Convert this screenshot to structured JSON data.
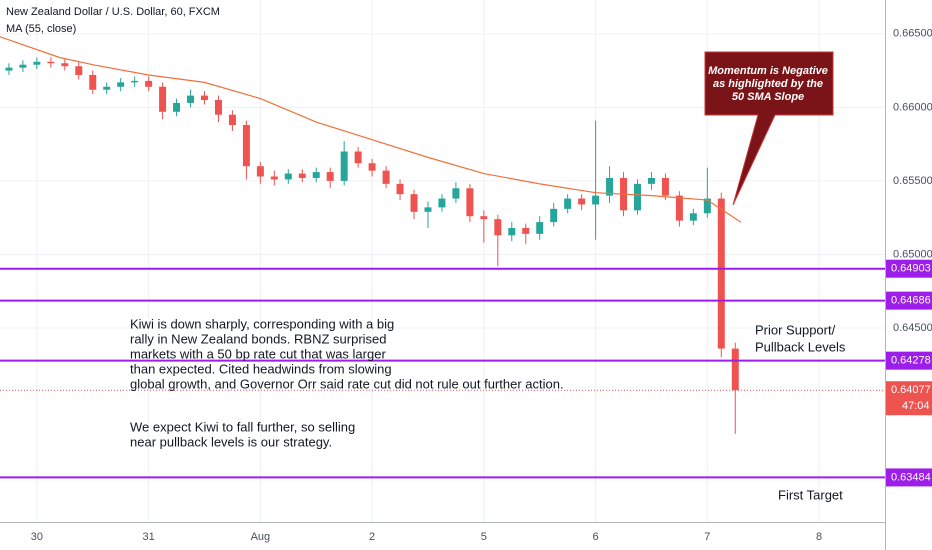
{
  "chart_data": {
    "type": "candlestick",
    "title": "New Zealand Dollar / U.S. Dollar, 60, FXCM",
    "indicator_label": "MA (55, close)",
    "x": [
      -0.25,
      -0.125,
      0,
      0.125,
      0.25,
      0.375,
      0.5,
      0.625,
      0.75,
      0.875,
      1,
      1.125,
      1.25,
      1.375,
      1.5,
      1.625,
      1.75,
      1.875,
      2,
      2.125,
      2.25,
      2.375,
      2.5,
      2.625,
      2.75,
      2.875,
      3,
      3.125,
      3.25,
      3.375,
      3.5,
      3.625,
      3.75,
      3.875,
      4,
      4.125,
      4.25,
      4.375,
      4.5,
      4.625,
      4.75,
      4.875,
      5,
      5.125,
      5.25,
      5.375,
      5.5,
      5.625,
      5.75,
      5.875,
      6,
      6.125,
      6.25
    ],
    "open": [
      0.6625,
      0.6627,
      0.6629,
      0.6631,
      0.663,
      0.6628,
      0.6622,
      0.6612,
      0.6614,
      0.6617,
      0.6618,
      0.6614,
      0.6597,
      0.6603,
      0.6608,
      0.6605,
      0.6595,
      0.6588,
      0.656,
      0.6553,
      0.6551,
      0.6555,
      0.6552,
      0.6556,
      0.655,
      0.657,
      0.6562,
      0.6557,
      0.6548,
      0.6541,
      0.6529,
      0.6532,
      0.6538,
      0.6545,
      0.6526,
      0.6524,
      0.6513,
      0.6518,
      0.6514,
      0.6522,
      0.6531,
      0.6538,
      0.6534,
      0.654,
      0.6552,
      0.653,
      0.6548,
      0.6552,
      0.654,
      0.6523,
      0.6528,
      0.6538,
      0.6436
    ],
    "high": [
      0.663,
      0.6632,
      0.6634,
      0.6634,
      0.6633,
      0.6631,
      0.6625,
      0.6617,
      0.662,
      0.6621,
      0.6621,
      0.6617,
      0.6606,
      0.6612,
      0.6611,
      0.6608,
      0.6598,
      0.6591,
      0.6563,
      0.6557,
      0.6558,
      0.6558,
      0.6559,
      0.6559,
      0.6577,
      0.6573,
      0.6565,
      0.656,
      0.6551,
      0.6544,
      0.6536,
      0.6541,
      0.6549,
      0.6548,
      0.653,
      0.6527,
      0.6522,
      0.6521,
      0.6526,
      0.6535,
      0.6541,
      0.6541,
      0.6591,
      0.656,
      0.6556,
      0.6551,
      0.6556,
      0.6555,
      0.6543,
      0.6531,
      0.6559,
      0.6542,
      0.644
    ],
    "low": [
      0.6622,
      0.6624,
      0.6626,
      0.6627,
      0.6625,
      0.6619,
      0.6609,
      0.6609,
      0.6611,
      0.6614,
      0.6611,
      0.6592,
      0.6594,
      0.66,
      0.6602,
      0.659,
      0.6584,
      0.6551,
      0.6548,
      0.6547,
      0.6548,
      0.6549,
      0.6549,
      0.6545,
      0.6547,
      0.6559,
      0.6553,
      0.6545,
      0.6537,
      0.6524,
      0.6518,
      0.6529,
      0.6535,
      0.6522,
      0.6508,
      0.6492,
      0.6509,
      0.6507,
      0.651,
      0.6519,
      0.6528,
      0.653,
      0.651,
      0.6535,
      0.6526,
      0.6527,
      0.6544,
      0.6537,
      0.6519,
      0.652,
      0.6525,
      0.643,
      0.6378
    ],
    "close": [
      0.6627,
      0.6629,
      0.6631,
      0.663,
      0.6628,
      0.6622,
      0.6612,
      0.6614,
      0.6617,
      0.6618,
      0.6614,
      0.6597,
      0.6603,
      0.6608,
      0.6605,
      0.6595,
      0.6588,
      0.656,
      0.6553,
      0.6551,
      0.6555,
      0.6552,
      0.6556,
      0.655,
      0.657,
      0.6562,
      0.6557,
      0.6548,
      0.6541,
      0.6529,
      0.6532,
      0.6538,
      0.6545,
      0.6526,
      0.6524,
      0.6513,
      0.6518,
      0.6514,
      0.6522,
      0.6531,
      0.6538,
      0.6534,
      0.654,
      0.6552,
      0.653,
      0.6548,
      0.6552,
      0.654,
      0.6523,
      0.6528,
      0.6538,
      0.6436,
      0.64077
    ],
    "up_color": "#26a69a",
    "down_color": "#ef5350",
    "ma": {
      "x": [
        -0.33,
        0.2,
        0.5,
        1,
        1.5,
        2,
        2.5,
        3,
        3.5,
        4,
        4.5,
        5,
        5.5,
        6,
        6.3
      ],
      "values": [
        0.6648,
        0.6634,
        0.6629,
        0.6622,
        0.6617,
        0.6606,
        0.659,
        0.6578,
        0.6566,
        0.6555,
        0.6548,
        0.6542,
        0.654,
        0.6537,
        0.6522
      ],
      "color": "#f0703c"
    },
    "levels": {
      "values": [
        0.64903,
        0.64686,
        0.64278,
        0.63484
      ],
      "color": "#9c1ee8"
    },
    "last_price": {
      "value": 0.64077,
      "countdown": "47:04",
      "color": "#ef5350"
    },
    "xlim": [
      -0.33,
      7.59
    ],
    "xticks": [
      {
        "value": 0,
        "label": "30"
      },
      {
        "value": 1,
        "label": "31"
      },
      {
        "value": 2,
        "label": "Aug"
      },
      {
        "value": 3,
        "label": "2"
      },
      {
        "value": 4,
        "label": "5"
      },
      {
        "value": 5,
        "label": "6"
      },
      {
        "value": 6,
        "label": "7"
      },
      {
        "value": 7,
        "label": "8"
      }
    ],
    "ylim": [
      0.63181,
      0.6673
    ],
    "yticks": [
      {
        "value": 0.645,
        "label": "0.64500"
      },
      {
        "value": 0.65,
        "label": "0.65000"
      },
      {
        "value": 0.655,
        "label": "0.65500"
      },
      {
        "value": 0.66,
        "label": "0.66000"
      },
      {
        "value": 0.665,
        "label": "0.66500"
      }
    ],
    "grid": true,
    "callout": [
      "Momentum is Negative",
      "as highlighted by the",
      "50 SMA Slope"
    ],
    "commentary": [
      "Kiwi is down sharply, corresponding with a big",
      "rally in New Zealand bonds. RBNZ surprised",
      "markets with a 50 bp rate cut that was larger",
      "than expected. Cited headwinds from slowing",
      "global growth, and Governor Orr said rate cut did not rule out further action."
    ],
    "outlook": [
      "We expect Kiwi to fall further, so selling",
      "near pullback levels is our  strategy."
    ],
    "levels_note": [
      "Prior Support/",
      "Pullback Levels"
    ],
    "target_note": "First Target"
  }
}
